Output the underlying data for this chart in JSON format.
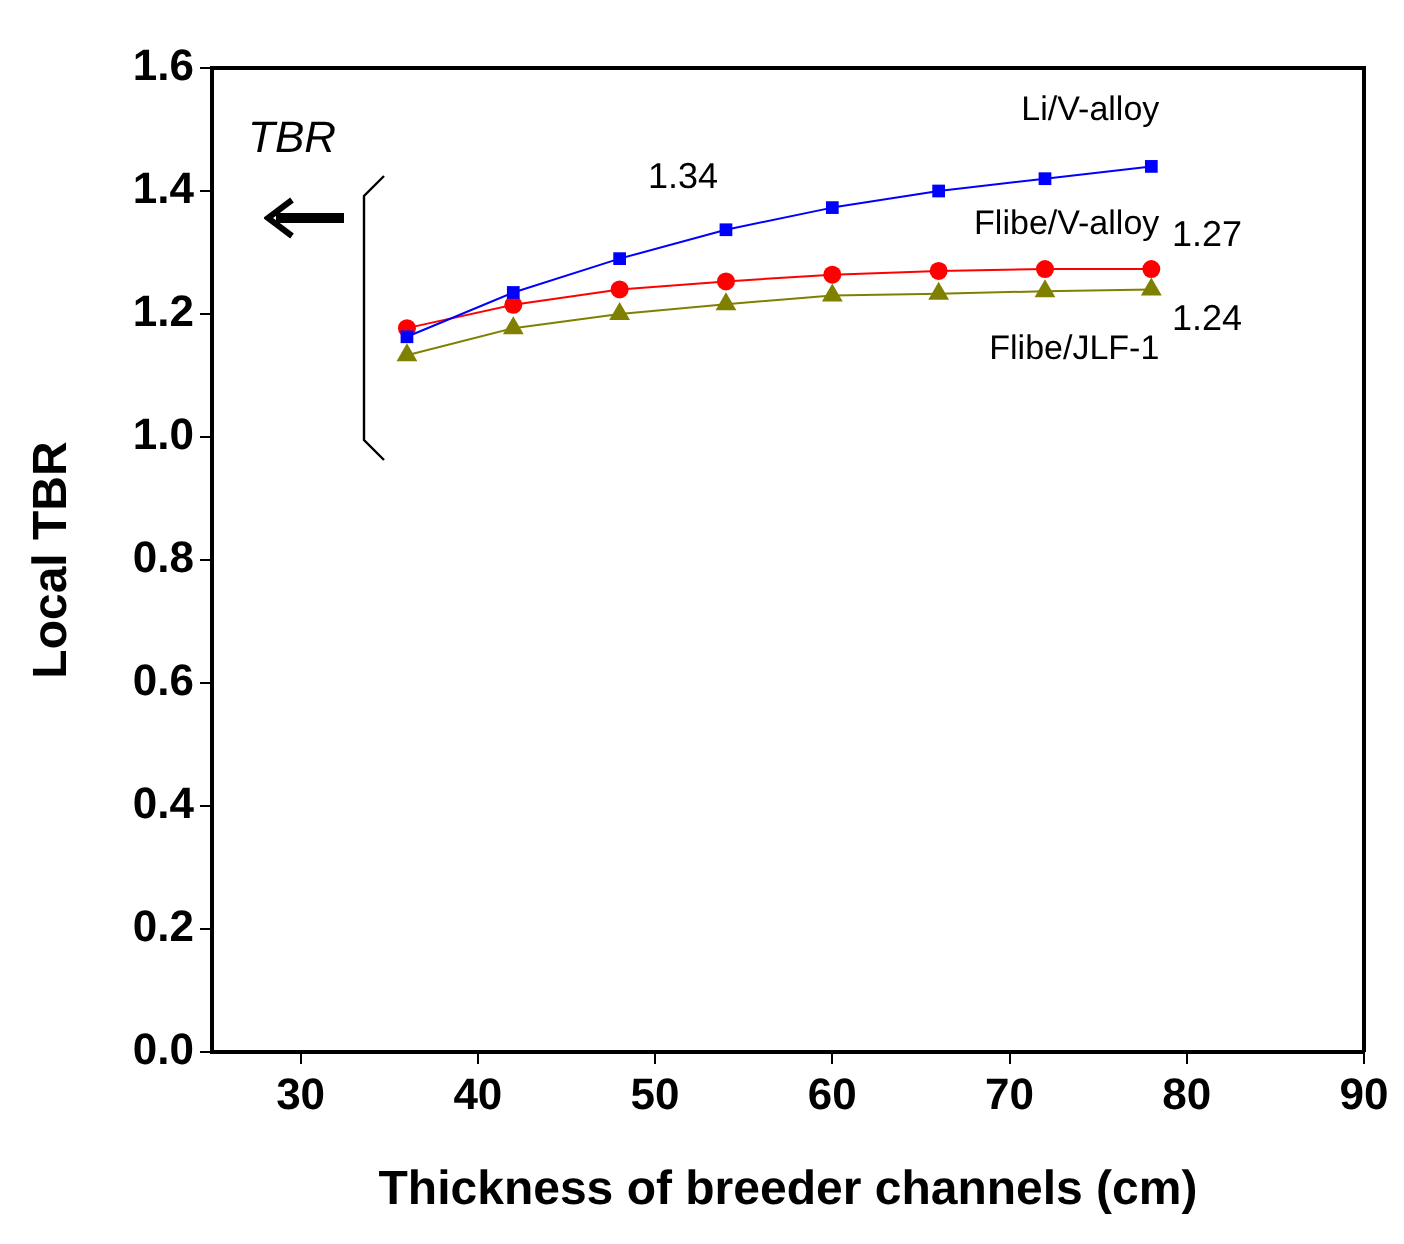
{
  "chart_data": {
    "type": "line",
    "xlabel": "Thickness of breeder channels (cm)",
    "ylabel": "Local TBR",
    "x": [
      36,
      42,
      48,
      54,
      60,
      66,
      72,
      78
    ],
    "series": [
      {
        "name": "Li/V-alloy",
        "color": "#0000ff",
        "marker": "square",
        "values": [
          1.163,
          1.235,
          1.29,
          1.337,
          1.373,
          1.4,
          1.42,
          1.44
        ]
      },
      {
        "name": "Flibe/V-alloy",
        "color": "#ff0000",
        "marker": "circle",
        "values": [
          1.177,
          1.215,
          1.24,
          1.253,
          1.264,
          1.27,
          1.273,
          1.273
        ]
      },
      {
        "name": "Flibe/JLF-1",
        "color": "#808000",
        "marker": "triangle",
        "values": [
          1.133,
          1.177,
          1.2,
          1.216,
          1.23,
          1.233,
          1.237,
          1.24
        ]
      }
    ],
    "xlim": [
      25,
      90
    ],
    "xticks": [
      30,
      40,
      50,
      60,
      70,
      80,
      90
    ],
    "ylim": [
      0,
      1.6
    ],
    "yticks": [
      {
        "value": 0,
        "label": "0.0"
      },
      {
        "value": 0.2,
        "label": "0.2"
      },
      {
        "value": 0.4,
        "label": "0.4"
      },
      {
        "value": 0.6,
        "label": "0.6"
      },
      {
        "value": 0.8,
        "label": "0.8"
      },
      {
        "value": 1,
        "label": "1.0"
      },
      {
        "value": 1.2,
        "label": "1.2"
      },
      {
        "value": 1.4,
        "label": "1.4"
      },
      {
        "value": 1.6,
        "label": "1.6"
      }
    ],
    "annotations": [
      "TBR",
      "1.34",
      "1.27",
      "1.24"
    ],
    "legend": false,
    "grid": false
  }
}
